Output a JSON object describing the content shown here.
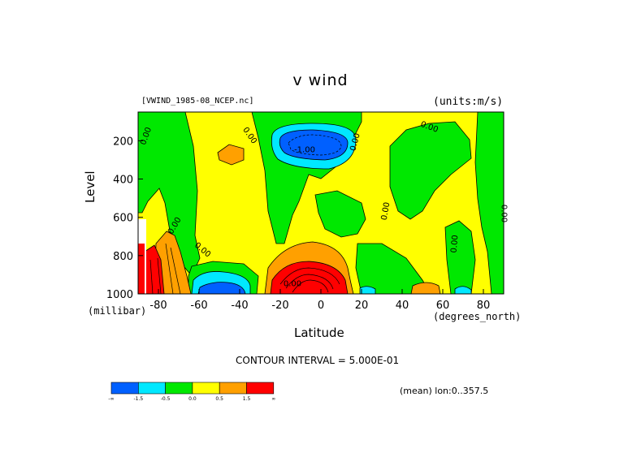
{
  "chart_data": {
    "type": "heatmap",
    "title": "v wind",
    "source_label": "[VWIND_1985-08_NCEP.nc]",
    "units_label": "(units:m/s)",
    "xlabel": "Latitude",
    "x_units": "(degrees_north)",
    "ylabel": "Level",
    "y_units": "(millibar)",
    "x_ticks": [
      "-80",
      "-60",
      "-40",
      "-20",
      "0",
      "20",
      "40",
      "60",
      "80"
    ],
    "y_ticks": [
      "200",
      "400",
      "600",
      "800",
      "1000"
    ],
    "xlim": [
      -90,
      90
    ],
    "ylim": [
      1000,
      50
    ],
    "contour_interval_label": "CONTOUR INTERVAL = 5.000E-01",
    "mean_label": "(mean) lon:0..357.5",
    "contour_labels": [
      "0.00",
      "0.00",
      "0.00",
      "0.00",
      "0.00",
      "0.00",
      "-1.00",
      "0.00",
      "0.00",
      "0.00",
      "0.00"
    ],
    "colorbar": {
      "colors": [
        "#0060ff",
        "#00e8ff",
        "#00e800",
        "#ffff00",
        "#ffa000",
        "#ff0000"
      ],
      "labels": [
        "-∞",
        "-1.5",
        "-0.5",
        "0.0",
        "0.5",
        "1.5",
        "∞"
      ]
    },
    "regions": [
      {
        "level": "strong-negative",
        "lat": -7,
        "p": 180,
        "value": -2.0
      },
      {
        "level": "strong-negative",
        "lat": -55,
        "p": 960,
        "value": -1.5
      },
      {
        "level": "strong-positive",
        "lat": -4,
        "p": 960,
        "value": 2.0
      },
      {
        "level": "strong-positive",
        "lat": -86,
        "p": 900,
        "value": 2.0
      },
      {
        "level": "positive",
        "lat": -72,
        "p": 850,
        "value": 1.0
      },
      {
        "level": "positive",
        "lat": -44,
        "p": 240,
        "value": 0.7
      },
      {
        "level": "positive",
        "lat": 52,
        "p": 970,
        "value": 0.7
      },
      {
        "level": "weak-negative",
        "lat": -77,
        "p": 400,
        "value": -0.3
      },
      {
        "level": "weak-negative",
        "lat": 50,
        "p": 300,
        "value": -0.3
      },
      {
        "level": "weak-negative",
        "lat": 83,
        "p": 500,
        "value": -0.3
      }
    ]
  }
}
